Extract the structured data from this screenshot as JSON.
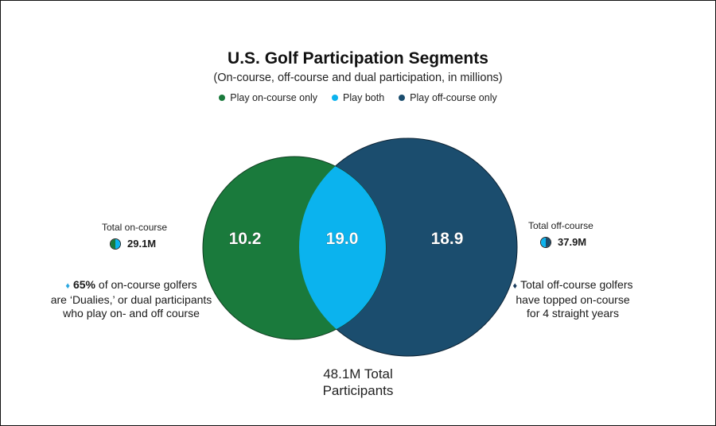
{
  "chart_data": {
    "type": "venn",
    "title": "U.S. Golf Participation Segments",
    "subtitle": "(On-course, off-course and dual participation, in millions)",
    "legend_position": "top-center",
    "series": [
      {
        "name": "Play on-course only",
        "value": 10.2,
        "value_label": "10.2",
        "color": "#1a7a3c"
      },
      {
        "name": "Play both",
        "value": 19.0,
        "value_label": "19.0",
        "color": "#0bb3ee"
      },
      {
        "name": "Play off-course only",
        "value": 18.9,
        "value_label": "18.9",
        "color": "#1b4d6e"
      }
    ]
  },
  "annotations": {
    "on_course": {
      "label": "Total on-course",
      "value": "29.1M",
      "note_highlight": "65%",
      "note_line1": " of on-course golfers",
      "note_line2": "are ‘Dualies,’ or dual participants",
      "note_line3": "who play on- and off course"
    },
    "off_course": {
      "label": "Total off-course",
      "value": "37.9M",
      "note_line1": "Total off-course golfers",
      "note_line2": "have topped on-course",
      "note_line3": "for 4 straight years"
    },
    "total": {
      "line1": "48.1M Total",
      "line2": "Participants"
    }
  },
  "colors": {
    "on_course": "#1a7a3c",
    "both": "#0bb3ee",
    "off_course": "#1b4d6e",
    "accent_diamond": "#2aa7e0",
    "dark_diamond": "#1b3d5e"
  }
}
